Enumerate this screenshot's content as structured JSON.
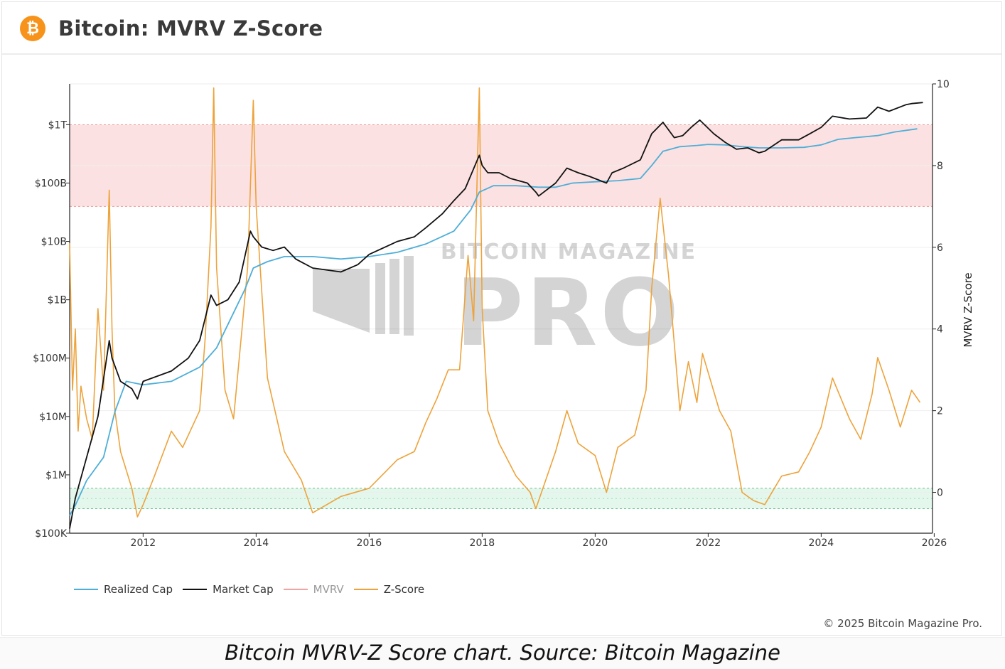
{
  "header": {
    "title": "Bitcoin: MVRV Z-Score",
    "icon": "bitcoin-logo-icon",
    "icon_glyph": "₿"
  },
  "watermark": {
    "line1": "BITCOIN MAGAZINE",
    "line2": "PRO",
    "mark": "®"
  },
  "copyright": "© 2025 Bitcoin Magazine Pro.",
  "caption": "Bitcoin MVRV-Z Score chart. Source: Bitcoin Magazine",
  "colors": {
    "realized_cap": "#4eaed8",
    "market_cap": "#111111",
    "mvrv": "#f1a4a4",
    "zscore": "#eda33b",
    "red_band": "#fbe1e1",
    "green_band": "#e3f7ec"
  },
  "legend": [
    {
      "label": "Realized Cap",
      "color": "#4eaed8"
    },
    {
      "label": "Market Cap",
      "color": "#111111"
    },
    {
      "label": "MVRV",
      "color": "#f1a4a4",
      "muted": true
    },
    {
      "label": "Z-Score",
      "color": "#eda33b"
    }
  ],
  "chart_data": {
    "type": "line",
    "title": "Bitcoin: MVRV Z-Score",
    "x_range": [
      2010.7,
      2025.97
    ],
    "x_ticks": [
      "2012",
      "2014",
      "2016",
      "2018",
      "2020",
      "2022",
      "2024",
      "2026"
    ],
    "left_axis": {
      "scale": "log",
      "range_usd": [
        100000,
        5000000000000
      ],
      "ticks": [
        {
          "label": "$1T",
          "value": 1000000000000
        },
        {
          "label": "$100B",
          "value": 100000000000
        },
        {
          "label": "$10B",
          "value": 10000000000
        },
        {
          "label": "$1B",
          "value": 1000000000
        },
        {
          "label": "$100M",
          "value": 100000000
        },
        {
          "label": "$10M",
          "value": 10000000
        },
        {
          "label": "$1M",
          "value": 1000000
        },
        {
          "label": "$100K",
          "value": 100000
        }
      ]
    },
    "right_axis": {
      "label": "MVRV Z-Score",
      "range": [
        -1,
        10
      ],
      "ticks": [
        {
          "label": "10",
          "value": 10
        },
        {
          "label": "8",
          "value": 8
        },
        {
          "label": "6",
          "value": 6
        },
        {
          "label": "4",
          "value": 4
        },
        {
          "label": "2",
          "value": 2
        },
        {
          "label": "0",
          "value": 0
        }
      ]
    },
    "bands": [
      {
        "name": "overvalued",
        "from": 7,
        "to": 9
      },
      {
        "name": "undervalued",
        "from": -0.4,
        "to": 0.1
      }
    ],
    "series": [
      {
        "name": "Realized Cap",
        "axis": "left",
        "x": [
          2010.7,
          2010.8,
          2011.0,
          2011.3,
          2011.5,
          2011.7,
          2012.0,
          2012.5,
          2013.0,
          2013.3,
          2013.8,
          2013.95,
          2014.2,
          2014.5,
          2015.0,
          2015.5,
          2016.0,
          2016.5,
          2017.0,
          2017.5,
          2017.8,
          2017.95,
          2018.2,
          2018.6,
          2019.0,
          2019.3,
          2019.6,
          2020.0,
          2020.4,
          2020.8,
          2021.0,
          2021.2,
          2021.5,
          2021.8,
          2022.0,
          2022.3,
          2022.6,
          2022.9,
          2023.3,
          2023.7,
          2024.0,
          2024.3,
          2024.6,
          2025.0,
          2025.3,
          2025.7
        ],
        "values": [
          200000,
          300000,
          800000,
          2000000,
          12000000,
          40000000,
          35000000,
          40000000,
          70000000,
          150000000,
          1500000000,
          3500000000,
          4500000000,
          5500000000,
          5500000000,
          5000000000,
          5500000000,
          6500000000,
          9000000000,
          15000000000,
          35000000000,
          70000000000,
          90000000000,
          90000000000,
          85000000000,
          85000000000,
          100000000000,
          105000000000,
          110000000000,
          120000000000,
          200000000000,
          350000000000,
          420000000000,
          440000000000,
          460000000000,
          450000000000,
          420000000000,
          400000000000,
          400000000000,
          410000000000,
          450000000000,
          560000000000,
          600000000000,
          650000000000,
          750000000000,
          850000000000
        ]
      },
      {
        "name": "Market Cap",
        "axis": "left",
        "x": [
          2010.7,
          2010.8,
          2011.0,
          2011.2,
          2011.4,
          2011.45,
          2011.6,
          2011.8,
          2011.9,
          2012.0,
          2012.5,
          2012.8,
          2013.0,
          2013.2,
          2013.3,
          2013.5,
          2013.7,
          2013.9,
          2013.95,
          2014.1,
          2014.3,
          2014.5,
          2014.7,
          2015.0,
          2015.5,
          2015.8,
          2016.0,
          2016.5,
          2016.8,
          2017.0,
          2017.3,
          2017.5,
          2017.7,
          2017.95,
          2018.0,
          2018.1,
          2018.3,
          2018.5,
          2018.8,
          2018.95,
          2019.0,
          2019.3,
          2019.5,
          2019.7,
          2019.9,
          2020.2,
          2020.3,
          2020.5,
          2020.8,
          2021.0,
          2021.2,
          2021.4,
          2021.55,
          2021.7,
          2021.85,
          2022.1,
          2022.3,
          2022.5,
          2022.7,
          2022.9,
          2023.0,
          2023.3,
          2023.6,
          2023.8,
          2024.0,
          2024.2,
          2024.5,
          2024.8,
          2025.0,
          2025.2,
          2025.5,
          2025.6,
          2025.8
        ],
        "values": [
          120000,
          400000,
          2000000,
          10000000,
          200000000,
          100000000,
          40000000,
          30000000,
          20000000,
          40000000,
          60000000,
          100000000,
          200000000,
          1200000000,
          800000000,
          1000000000,
          2000000000,
          15000000000,
          12000000000,
          8000000000,
          7000000000,
          8000000000,
          5000000000,
          3500000000,
          3000000000,
          4000000000,
          6000000000,
          10000000000,
          12000000000,
          17000000000,
          30000000000,
          50000000000,
          80000000000,
          300000000000,
          200000000000,
          150000000000,
          150000000000,
          120000000000,
          100000000000,
          70000000000,
          60000000000,
          100000000000,
          180000000000,
          150000000000,
          130000000000,
          100000000000,
          150000000000,
          180000000000,
          250000000000,
          700000000000,
          1100000000000,
          600000000000,
          650000000000,
          900000000000,
          1200000000000,
          700000000000,
          500000000000,
          380000000000,
          400000000000,
          330000000000,
          350000000000,
          550000000000,
          550000000000,
          700000000000,
          900000000000,
          1400000000000,
          1250000000000,
          1300000000000,
          2000000000000,
          1700000000000,
          2200000000000,
          2300000000000,
          2400000000000
        ]
      },
      {
        "name": "Z-Score",
        "axis": "right",
        "x": [
          2010.7,
          2010.75,
          2010.8,
          2010.85,
          2010.9,
          2011.0,
          2011.1,
          2011.2,
          2011.3,
          2011.4,
          2011.45,
          2011.5,
          2011.6,
          2011.8,
          2011.9,
          2012.0,
          2012.2,
          2012.5,
          2012.7,
          2013.0,
          2013.1,
          2013.2,
          2013.25,
          2013.3,
          2013.45,
          2013.6,
          2013.75,
          2013.85,
          2013.95,
          2014.0,
          2014.2,
          2014.5,
          2014.8,
          2015.0,
          2015.5,
          2016.0,
          2016.5,
          2016.8,
          2017.0,
          2017.2,
          2017.4,
          2017.6,
          2017.75,
          2017.85,
          2017.95,
          2018.0,
          2018.1,
          2018.3,
          2018.6,
          2018.85,
          2018.95,
          2019.0,
          2019.3,
          2019.5,
          2019.7,
          2020.0,
          2020.2,
          2020.4,
          2020.7,
          2020.9,
          2021.0,
          2021.15,
          2021.3,
          2021.5,
          2021.65,
          2021.8,
          2021.9,
          2022.2,
          2022.4,
          2022.6,
          2022.8,
          2023.0,
          2023.3,
          2023.6,
          2023.8,
          2024.0,
          2024.2,
          2024.5,
          2024.7,
          2024.9,
          2025.0,
          2025.2,
          2025.4,
          2025.6,
          2025.75
        ],
        "values": [
          6.1,
          2.5,
          4.0,
          1.5,
          2.6,
          1.8,
          1.3,
          4.5,
          2.5,
          7.4,
          4.0,
          2.0,
          1.0,
          0.1,
          -0.6,
          -0.3,
          0.4,
          1.5,
          1.1,
          2.0,
          3.8,
          6.5,
          9.9,
          5.5,
          2.5,
          1.8,
          4.0,
          5.5,
          9.6,
          7.0,
          2.8,
          1.0,
          0.3,
          -0.5,
          -0.1,
          0.1,
          0.8,
          1.0,
          1.7,
          2.3,
          3.0,
          3.0,
          5.8,
          4.2,
          9.9,
          4.5,
          2.0,
          1.2,
          0.4,
          0.0,
          -0.4,
          -0.2,
          1.0,
          2.0,
          1.2,
          0.9,
          0.0,
          1.1,
          1.4,
          2.5,
          5.0,
          7.2,
          5.3,
          2.0,
          3.2,
          2.2,
          3.4,
          2.0,
          1.5,
          0.0,
          -0.2,
          -0.3,
          0.4,
          0.5,
          1.0,
          1.6,
          2.8,
          1.8,
          1.3,
          2.4,
          3.3,
          2.5,
          1.6,
          2.5,
          2.2
        ]
      }
    ]
  }
}
